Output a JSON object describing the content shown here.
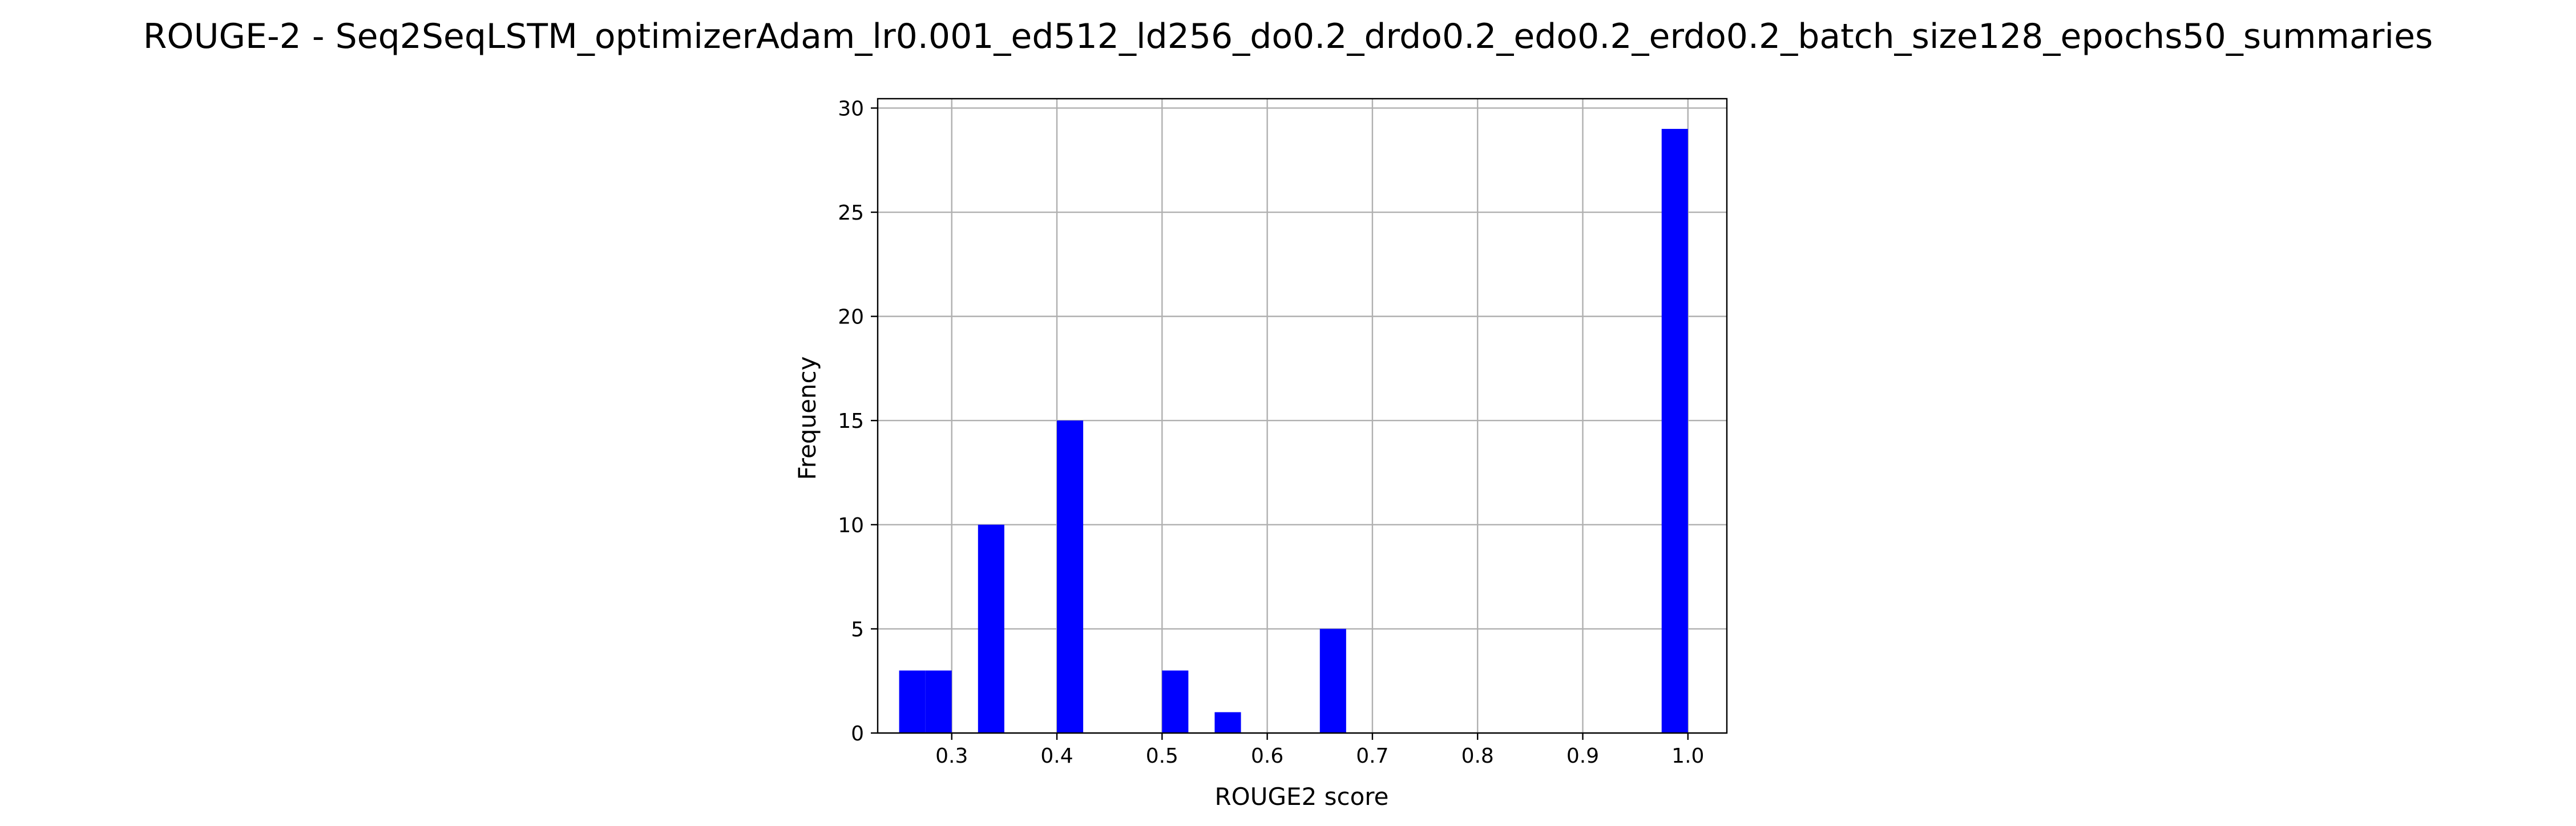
{
  "chart_data": {
    "type": "bar",
    "title": "ROUGE-2 - Seq2SeqLSTM_optimizerAdam_lr0.001_ed512_ld256_do0.2_drdo0.2_edo0.2_erdo0.2_batch_size128_epochs50_summaries",
    "xlabel": "ROUGE2 score",
    "ylabel": "Frequency",
    "xlim": [
      0.2296,
      1.037
    ],
    "ylim": [
      0,
      30.45
    ],
    "xticks": [
      0.3,
      0.4,
      0.5,
      0.6,
      0.7,
      0.8,
      0.9,
      1.0
    ],
    "xtick_labels": [
      "0.3",
      "0.4",
      "0.5",
      "0.6",
      "0.7",
      "0.8",
      "0.9",
      "1.0"
    ],
    "yticks": [
      0,
      5,
      10,
      15,
      20,
      25,
      30
    ],
    "ytick_labels": [
      "0",
      "5",
      "10",
      "15",
      "20",
      "25",
      "30"
    ],
    "grid": true,
    "bar_color": "#0000ff",
    "bins": [
      {
        "start": 0.25,
        "end": 0.275,
        "value": 3
      },
      {
        "start": 0.275,
        "end": 0.3,
        "value": 3
      },
      {
        "start": 0.325,
        "end": 0.35,
        "value": 10
      },
      {
        "start": 0.4,
        "end": 0.425,
        "value": 15
      },
      {
        "start": 0.5,
        "end": 0.525,
        "value": 3
      },
      {
        "start": 0.55,
        "end": 0.575,
        "value": 1
      },
      {
        "start": 0.65,
        "end": 0.675,
        "value": 5
      },
      {
        "start": 0.975,
        "end": 1.0,
        "value": 29
      }
    ]
  }
}
